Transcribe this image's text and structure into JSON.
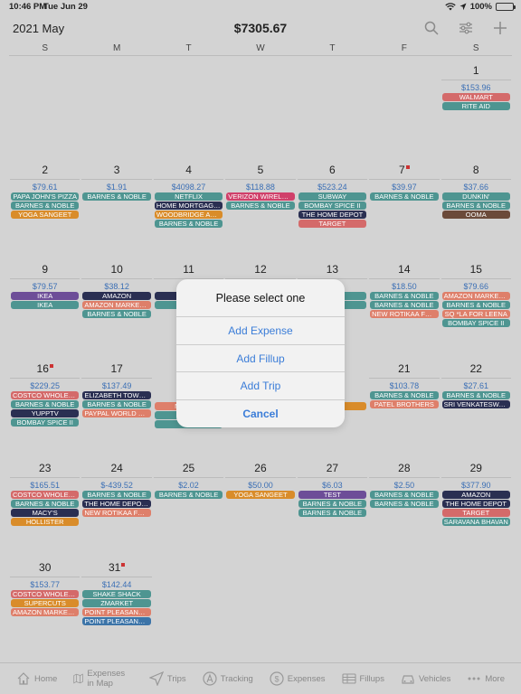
{
  "status": {
    "time": "10:46 PM",
    "date": "Tue Jun 29",
    "battery": "100%"
  },
  "header": {
    "month": "2021 May",
    "total": "$7305.67",
    "icons": [
      "search-icon",
      "filter-icon",
      "add-icon"
    ]
  },
  "weekdays": [
    "S",
    "M",
    "T",
    "W",
    "T",
    "F",
    "S"
  ],
  "days": [
    {
      "day": "1",
      "col": 6,
      "row": 0,
      "amount": "$153.96",
      "tags": [
        [
          "WALMART",
          "red"
        ],
        [
          "RITE AID",
          "teal"
        ]
      ]
    },
    {
      "day": "2",
      "col": 0,
      "row": 1,
      "amount": "$79.61",
      "tags": [
        [
          "PAPA JOHN'S PIZZA",
          "teal"
        ],
        [
          "BARNES & NOBLE",
          "teal"
        ],
        [
          "YOGA SANGEET",
          "orange"
        ]
      ]
    },
    {
      "day": "3",
      "col": 1,
      "row": 1,
      "amount": "$1.91",
      "tags": [
        [
          "BARNES & NOBLE",
          "teal"
        ]
      ]
    },
    {
      "day": "4",
      "col": 2,
      "row": 1,
      "amount": "$4098.27",
      "tags": [
        [
          "NETFLIX",
          "teal"
        ],
        [
          "HOME MORTGAGE P...",
          "navy"
        ],
        [
          "WOODBRIDGE ACA...",
          "orange"
        ],
        [
          "BARNES & NOBLE",
          "teal"
        ]
      ]
    },
    {
      "day": "5",
      "col": 3,
      "row": 1,
      "amount": "$118.88",
      "tags": [
        [
          "VERIZON WIRELESS",
          "pink"
        ],
        [
          "BARNES & NOBLE",
          "teal"
        ]
      ]
    },
    {
      "day": "6",
      "col": 4,
      "row": 1,
      "amount": "$523.24",
      "tags": [
        [
          "SUBWAY",
          "teal"
        ],
        [
          "BOMBAY SPICE II",
          "teal"
        ],
        [
          "THE HOME DEPOT",
          "navy"
        ],
        [
          "TARGET",
          "red"
        ]
      ]
    },
    {
      "day": "7",
      "col": 5,
      "row": 1,
      "mark": true,
      "amount": "$39.97",
      "tags": [
        [
          "BARNES & NOBLE",
          "teal"
        ]
      ]
    },
    {
      "day": "8",
      "col": 6,
      "row": 1,
      "amount": "$37.66",
      "tags": [
        [
          "DUNKIN'",
          "teal"
        ],
        [
          "BARNES & NOBLE",
          "teal"
        ],
        [
          "OOMA",
          "brown"
        ]
      ]
    },
    {
      "day": "9",
      "col": 0,
      "row": 2,
      "amount": "$79.57",
      "tags": [
        [
          "IKEA",
          "purple"
        ],
        [
          "IKEA",
          "teal"
        ]
      ]
    },
    {
      "day": "10",
      "col": 1,
      "row": 2,
      "amount": "$38.12",
      "tags": [
        [
          "AMAZON",
          "navy"
        ],
        [
          "AMAZON MARKETP...",
          "salmon"
        ],
        [
          "BARNES & NOBLE",
          "teal"
        ]
      ]
    },
    {
      "day": "11",
      "col": 2,
      "row": 2,
      "amount": "",
      "tags": [
        [
          "MO",
          "navy"
        ],
        [
          "BAR",
          "teal"
        ]
      ]
    },
    {
      "day": "12",
      "col": 3,
      "row": 2,
      "amount": "",
      "tags": []
    },
    {
      "day": "13",
      "col": 4,
      "row": 2,
      "amount": "",
      "tags": [
        [
          "OBLE",
          "teal"
        ],
        [
          "EENA",
          "teal"
        ]
      ]
    },
    {
      "day": "14",
      "col": 5,
      "row": 2,
      "amount": "$18.50",
      "tags": [
        [
          "BARNES & NOBLE",
          "teal"
        ],
        [
          "BARNES & NOBLE",
          "teal"
        ],
        [
          "NEW ROTIKAA FOODS",
          "salmon"
        ]
      ]
    },
    {
      "day": "15",
      "col": 6,
      "row": 2,
      "amount": "$79.66",
      "tags": [
        [
          "AMAZON MARKETP...",
          "salmon"
        ],
        [
          "BARNES & NOBLE",
          "teal"
        ],
        [
          "SQ *LA FOR LEENA",
          "salmon"
        ],
        [
          "BOMBAY SPICE II",
          "teal"
        ]
      ]
    },
    {
      "day": "16",
      "col": 0,
      "row": 3,
      "mark": true,
      "amount": "$229.25",
      "tags": [
        [
          "COSTCO WHOLESALE",
          "red"
        ],
        [
          "BARNES & NOBLE",
          "teal"
        ],
        [
          "YUPPTV",
          "navy"
        ],
        [
          "BOMBAY SPICE II",
          "teal"
        ]
      ]
    },
    {
      "day": "17",
      "col": 1,
      "row": 3,
      "amount": "$137.49",
      "tags": [
        [
          "ELIZABETH TOWN G...",
          "navy"
        ],
        [
          "BARNES & NOBLE",
          "teal"
        ],
        [
          "PAYPAL WORLD FO...",
          "salmon"
        ]
      ]
    },
    {
      "day": "",
      "col": 2,
      "row": 3,
      "amount": "",
      "tags": [
        [
          "NEW RO",
          "salmon"
        ],
        [
          "BAR",
          "teal"
        ],
        [
          "BU",
          "teal"
        ]
      ]
    },
    {
      "day": "",
      "col": 4,
      "row": 3,
      "amount": "",
      "tags": [
        [
          "ETBA",
          "orange"
        ]
      ]
    },
    {
      "day": "21",
      "col": 5,
      "row": 3,
      "amount": "$103.78",
      "tags": [
        [
          "BARNES & NOBLE",
          "teal"
        ],
        [
          "PATEL BROTHERS",
          "salmon"
        ]
      ]
    },
    {
      "day": "22",
      "col": 6,
      "row": 3,
      "amount": "$27.61",
      "tags": [
        [
          "BARNES & NOBLE",
          "teal"
        ],
        [
          "SRI VENKATESWAR...",
          "navy"
        ]
      ]
    },
    {
      "day": "23",
      "col": 0,
      "row": 4,
      "amount": "$165.51",
      "tags": [
        [
          "COSTCO WHOLESALE",
          "red"
        ],
        [
          "BARNES & NOBLE",
          "teal"
        ],
        [
          "MACY'S",
          "navy"
        ],
        [
          "HOLLISTER",
          "orange"
        ]
      ]
    },
    {
      "day": "24",
      "col": 1,
      "row": 4,
      "amount": "$-439.52",
      "tags": [
        [
          "BARNES & NOBLE",
          "teal"
        ],
        [
          "THE HOME DEPOT R...",
          "navy"
        ],
        [
          "NEW ROTIKAA FOODS",
          "salmon"
        ]
      ]
    },
    {
      "day": "25",
      "col": 2,
      "row": 4,
      "amount": "$2.02",
      "tags": [
        [
          "BARNES & NOBLE",
          "teal"
        ]
      ]
    },
    {
      "day": "26",
      "col": 3,
      "row": 4,
      "amount": "$50.00",
      "tags": [
        [
          "YOGA SANGEET",
          "orange"
        ]
      ]
    },
    {
      "day": "27",
      "col": 4,
      "row": 4,
      "amount": "$6.03",
      "tags": [
        [
          "TEST",
          "purple"
        ],
        [
          "BARNES & NOBLE",
          "teal"
        ],
        [
          "BARNES & NOBLE",
          "teal"
        ]
      ]
    },
    {
      "day": "28",
      "col": 5,
      "row": 4,
      "amount": "$2.50",
      "tags": [
        [
          "BARNES & NOBLE",
          "teal"
        ],
        [
          "BARNES & NOBLE",
          "teal"
        ]
      ]
    },
    {
      "day": "29",
      "col": 6,
      "row": 4,
      "amount": "$377.90",
      "tags": [
        [
          "AMAZON",
          "navy"
        ],
        [
          "THE HOME DEPOT",
          "navy"
        ],
        [
          "TARGET",
          "red"
        ],
        [
          "SARAVANA BHAVAN",
          "teal"
        ]
      ]
    },
    {
      "day": "30",
      "col": 0,
      "row": 5,
      "amount": "$153.77",
      "tags": [
        [
          "COSTCO WHOLESALE",
          "red"
        ],
        [
          "SUPERCUTS",
          "orange"
        ],
        [
          "AMAZON MARKETP...",
          "salmon"
        ]
      ]
    },
    {
      "day": "31",
      "col": 1,
      "row": 5,
      "mark": true,
      "amount": "$142.44",
      "tags": [
        [
          "SHAKE SHACK",
          "teal"
        ],
        [
          "ZMARKET",
          "teal"
        ],
        [
          "POINT PLEASANT B...",
          "salmon"
        ],
        [
          "POINT PLEASANT B...",
          "blue"
        ]
      ]
    }
  ],
  "dialog": {
    "title": "Please select one",
    "options": [
      "Add Expense",
      "Add Fillup",
      "Add Trip",
      "Cancel"
    ]
  },
  "tabs": [
    {
      "label": "Home",
      "icon": "home-icon"
    },
    {
      "label": "Expenses in Map",
      "icon": "map-icon"
    },
    {
      "label": "Trips",
      "icon": "trip-icon"
    },
    {
      "label": "Tracking",
      "icon": "tracking-icon"
    },
    {
      "label": "Expenses",
      "icon": "dollar-icon"
    },
    {
      "label": "Fillups",
      "icon": "fillup-icon"
    },
    {
      "label": "Vehicles",
      "icon": "car-icon"
    },
    {
      "label": "More",
      "icon": "more-icon"
    }
  ]
}
